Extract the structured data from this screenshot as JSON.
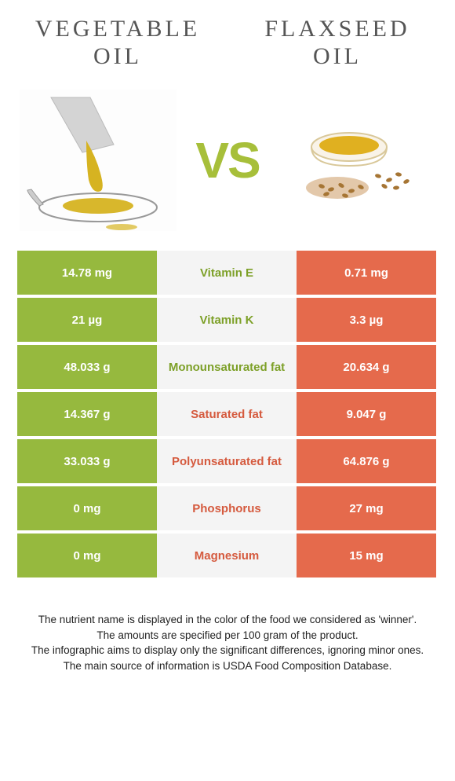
{
  "title_left": "VEGETABLE OIL",
  "title_right": "FLAXSEED OIL",
  "vs_label": "VS",
  "colors": {
    "left_bg": "#96b93e",
    "right_bg": "#e56a4c",
    "mid_bg": "#f4f4f4",
    "winner_left": "#7da028",
    "winner_right": "#d55a3e"
  },
  "rows": [
    {
      "left": "14.78 mg",
      "label": "Vitamin E",
      "right": "0.71 mg",
      "winner": "left"
    },
    {
      "left": "21 µg",
      "label": "Vitamin K",
      "right": "3.3 µg",
      "winner": "left"
    },
    {
      "left": "48.033 g",
      "label": "Monounsaturated fat",
      "right": "20.634 g",
      "winner": "left"
    },
    {
      "left": "14.367 g",
      "label": "Saturated fat",
      "right": "9.047 g",
      "winner": "right"
    },
    {
      "left": "33.033 g",
      "label": "Polyunsaturated fat",
      "right": "64.876 g",
      "winner": "right"
    },
    {
      "left": "0 mg",
      "label": "Phosphorus",
      "right": "27 mg",
      "winner": "right"
    },
    {
      "left": "0 mg",
      "label": "Magnesium",
      "right": "15 mg",
      "winner": "right"
    }
  ],
  "footer": {
    "line1": "The nutrient name is displayed in the color of the food we considered as 'winner'.",
    "line2": "The amounts are specified per 100 gram of the product.",
    "line3": "The infographic aims to display only the significant differences, ignoring minor ones.",
    "line4": "The main source of information is USDA Food Composition Database."
  }
}
